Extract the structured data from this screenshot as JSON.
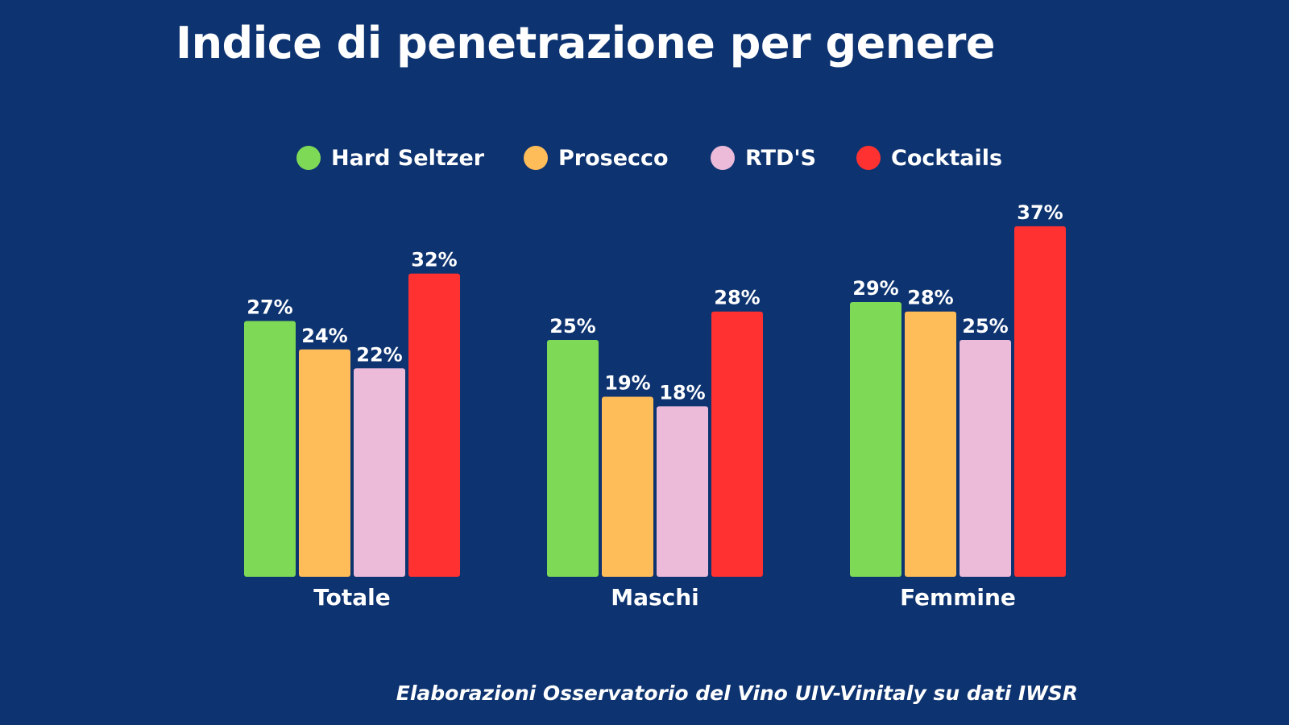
{
  "chart_data": {
    "type": "bar",
    "title": "Indice di penetrazione per genere",
    "categories": [
      "Totale",
      "Maschi",
      "Femmine"
    ],
    "series": [
      {
        "name": "Hard Seltzer",
        "color": "#7ed957",
        "values": [
          27,
          25,
          29
        ],
        "labels": [
          "27%",
          "25%",
          "29%"
        ]
      },
      {
        "name": "Prosecco",
        "color": "#ffbd59",
        "values": [
          24,
          19,
          28
        ],
        "labels": [
          "24%",
          "19%",
          "28%"
        ]
      },
      {
        "name": "RTD'S",
        "color": "#ebbbd9",
        "values": [
          22,
          18,
          25
        ],
        "labels": [
          "22%",
          "18%",
          "25%"
        ]
      },
      {
        "name": "Cocktails",
        "color": "#ff3131",
        "values": [
          32,
          28,
          37
        ],
        "labels": [
          "32%",
          "28%",
          "37%"
        ]
      }
    ],
    "value_unit": "%",
    "xlabel": "",
    "ylabel": "",
    "ylim": [
      0,
      40
    ],
    "grid": false,
    "legend_position": "top-center",
    "source_note": "Elaborazioni Osservatorio del Vino UIV-Vinitaly su dati IWSR"
  },
  "colors": {
    "background": "#0d3370",
    "text": "#ffffff"
  }
}
